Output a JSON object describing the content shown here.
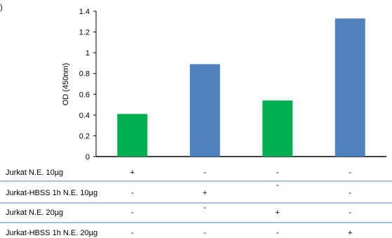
{
  "chart_data": {
    "type": "bar",
    "ylabel": "OD (450nm)",
    "ylim": [
      0,
      1.4
    ],
    "yticks": [
      "0",
      "0.2",
      "0.4",
      "0.6",
      "0.8",
      "1",
      "1.2",
      "1.4"
    ],
    "values": [
      0.41,
      0.89,
      0.54,
      1.33
    ],
    "bar_colors": [
      "#00b050",
      "#4f81bd",
      "#00b050",
      "#4f81bd"
    ],
    "grid": false
  },
  "table": {
    "rows": [
      {
        "label": "Jurkat N.E. 10µg",
        "signs": [
          "+",
          "-",
          "-",
          "-"
        ]
      },
      {
        "label": "Jurkat-HBSS 1h N.E. 10µg",
        "signs": [
          "-",
          "+",
          "-",
          "-"
        ]
      },
      {
        "label": "Jurkat N.E. 20µg",
        "signs": [
          "-",
          "-",
          "+",
          "-"
        ]
      },
      {
        "label": "Jurkat-HBSS 1h N.E. 20µg",
        "signs": [
          "-",
          "-",
          "-",
          "+"
        ]
      }
    ],
    "line_color": "#4f81bd"
  },
  "panel_label_fragment": ")"
}
